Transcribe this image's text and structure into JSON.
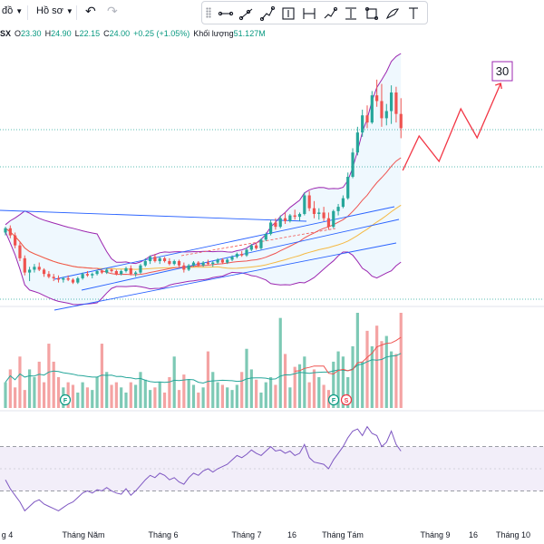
{
  "toolbar": {
    "chart_type_label": "đồ",
    "template_label": "Hồ sơ",
    "undo_icon": "undo-icon",
    "redo_icon": "redo-icon"
  },
  "drawing_tools": [
    {
      "name": "trend-line-icon"
    },
    {
      "name": "ray-icon"
    },
    {
      "name": "path-icon"
    },
    {
      "name": "date-price-range-icon"
    },
    {
      "name": "date-range-icon"
    },
    {
      "name": "forecast-icon"
    },
    {
      "name": "price-range-icon"
    },
    {
      "name": "rectangle-icon"
    },
    {
      "name": "brush-icon"
    },
    {
      "name": "text-icon"
    }
  ],
  "legend": {
    "symbol": "SX",
    "open_label": "O",
    "open": "23.30",
    "high_label": "H",
    "high": "24.90",
    "low_label": "L",
    "low": "22.15",
    "close_label": "C",
    "close": "24.00",
    "change": "+0.25 (+1.05%)",
    "volume_label": "Khối lượng",
    "volume": "51.127M"
  },
  "annotation": {
    "target_label": "30"
  },
  "event_markers": [
    {
      "label": "F",
      "color": "#089981"
    },
    {
      "label": "F",
      "color": "#089981"
    },
    {
      "label": "S",
      "color": "#f23645"
    }
  ],
  "colors": {
    "up": "#26a69a",
    "down": "#ef5350",
    "vol_up": "#7dc9b5",
    "vol_down": "#f4a3a3",
    "bb_band": "#9c27b0",
    "bb_mid": "#ef5350",
    "ma": "#f5b942",
    "channel": "#2962ff",
    "forecast": "#f23645",
    "rsi": "#7e57c2"
  },
  "x_axis_labels": [
    "g 4",
    "Tháng Năm",
    "Tháng 6",
    "Tháng 7",
    "16",
    "Tháng Tám",
    "Tháng 9",
    "16",
    "Tháng 10"
  ],
  "chart_data": {
    "type": "candlestick",
    "rsi_band": [
      30,
      70
    ],
    "candles": [
      [
        14.6,
        15.0,
        14.4,
        14.9
      ],
      [
        14.9,
        15.1,
        14.2,
        14.4
      ],
      [
        14.4,
        14.6,
        13.5,
        13.7
      ],
      [
        13.7,
        13.9,
        12.6,
        12.8
      ],
      [
        12.8,
        13.0,
        11.6,
        11.8
      ],
      [
        11.8,
        12.2,
        11.2,
        12.0
      ],
      [
        12.0,
        12.4,
        11.8,
        12.2
      ],
      [
        12.2,
        12.5,
        11.9,
        12.0
      ],
      [
        12.0,
        12.1,
        11.5,
        11.7
      ],
      [
        11.7,
        11.9,
        11.4,
        11.5
      ],
      [
        11.5,
        11.7,
        11.2,
        11.4
      ],
      [
        11.4,
        11.6,
        11.1,
        11.3
      ],
      [
        11.3,
        11.5,
        11.1,
        11.4
      ],
      [
        11.4,
        11.6,
        11.2,
        11.3
      ],
      [
        11.3,
        11.4,
        11.0,
        11.1
      ],
      [
        11.1,
        11.5,
        11.0,
        11.4
      ],
      [
        11.4,
        11.8,
        11.3,
        11.7
      ],
      [
        11.7,
        11.9,
        11.5,
        11.6
      ],
      [
        11.6,
        11.8,
        11.4,
        11.7
      ],
      [
        11.7,
        12.0,
        11.6,
        11.9
      ],
      [
        11.9,
        12.0,
        11.7,
        11.8
      ],
      [
        11.8,
        12.1,
        11.7,
        12.0
      ],
      [
        12.0,
        12.1,
        11.8,
        11.9
      ],
      [
        11.9,
        12.0,
        11.6,
        11.7
      ],
      [
        11.7,
        12.0,
        11.6,
        11.9
      ],
      [
        11.9,
        12.2,
        11.8,
        12.1
      ],
      [
        12.1,
        12.3,
        11.6,
        11.7
      ],
      [
        11.7,
        11.9,
        11.5,
        11.8
      ],
      [
        11.8,
        12.4,
        11.7,
        12.3
      ],
      [
        12.3,
        12.8,
        12.2,
        12.6
      ],
      [
        12.6,
        13.0,
        12.4,
        12.9
      ],
      [
        12.9,
        13.1,
        12.5,
        12.6
      ],
      [
        12.6,
        12.9,
        12.4,
        12.8
      ],
      [
        12.8,
        12.9,
        12.5,
        12.6
      ],
      [
        12.6,
        12.8,
        12.3,
        12.4
      ],
      [
        12.4,
        12.7,
        12.3,
        12.6
      ],
      [
        12.6,
        12.7,
        12.2,
        12.3
      ],
      [
        12.3,
        12.5,
        11.8,
        12.0
      ],
      [
        12.0,
        12.4,
        11.9,
        12.3
      ],
      [
        12.3,
        12.6,
        12.2,
        12.5
      ],
      [
        12.5,
        12.6,
        12.2,
        12.3
      ],
      [
        12.3,
        12.6,
        12.2,
        12.5
      ],
      [
        12.5,
        12.7,
        12.3,
        12.4
      ],
      [
        12.4,
        12.6,
        12.2,
        12.5
      ],
      [
        12.5,
        12.8,
        12.4,
        12.7
      ],
      [
        12.7,
        12.8,
        12.4,
        12.5
      ],
      [
        12.5,
        12.8,
        12.4,
        12.7
      ],
      [
        12.7,
        13.0,
        12.6,
        12.9
      ],
      [
        12.9,
        13.2,
        12.8,
        13.1
      ],
      [
        13.1,
        13.3,
        12.9,
        13.0
      ],
      [
        13.0,
        13.5,
        12.9,
        13.4
      ],
      [
        13.4,
        13.8,
        13.3,
        13.7
      ],
      [
        13.7,
        13.9,
        13.4,
        13.5
      ],
      [
        13.5,
        14.2,
        13.4,
        14.1
      ],
      [
        14.1,
        14.6,
        14.0,
        14.5
      ],
      [
        14.5,
        15.5,
        14.4,
        15.3
      ],
      [
        15.3,
        15.6,
        14.8,
        15.0
      ],
      [
        15.0,
        15.8,
        14.9,
        15.6
      ],
      [
        15.6,
        16.0,
        15.2,
        15.4
      ],
      [
        15.4,
        15.9,
        15.3,
        15.8
      ],
      [
        15.8,
        16.2,
        15.5,
        15.7
      ],
      [
        15.7,
        16.0,
        15.4,
        15.9
      ],
      [
        15.9,
        17.4,
        15.8,
        17.2
      ],
      [
        17.2,
        17.5,
        16.1,
        16.3
      ],
      [
        16.3,
        16.8,
        15.6,
        15.9
      ],
      [
        15.9,
        16.3,
        15.5,
        16.0
      ],
      [
        16.0,
        16.4,
        15.4,
        15.6
      ],
      [
        15.6,
        16.0,
        14.8,
        15.0
      ],
      [
        15.0,
        16.2,
        14.9,
        16.1
      ],
      [
        16.1,
        16.6,
        15.8,
        16.4
      ],
      [
        16.4,
        17.2,
        16.3,
        17.0
      ],
      [
        17.0,
        18.8,
        16.9,
        18.5
      ],
      [
        18.5,
        20.5,
        18.4,
        20.2
      ],
      [
        20.2,
        22.0,
        20.0,
        21.6
      ],
      [
        21.6,
        23.2,
        21.3,
        22.8
      ],
      [
        22.8,
        23.5,
        21.9,
        22.3
      ],
      [
        22.3,
        24.5,
        22.2,
        24.2
      ],
      [
        24.2,
        25.3,
        23.4,
        23.8
      ],
      [
        23.8,
        25.0,
        22.0,
        22.6
      ],
      [
        22.6,
        23.6,
        22.1,
        23.1
      ],
      [
        23.1,
        24.9,
        22.2,
        24.4
      ],
      [
        24.4,
        24.8,
        22.3,
        22.9
      ],
      [
        22.9,
        24.0,
        21.2,
        21.9
      ]
    ],
    "volume": [
      10,
      15,
      8,
      20,
      7,
      15,
      12,
      18,
      10,
      25,
      18,
      12,
      8,
      10,
      9,
      6,
      10,
      8,
      7,
      12,
      25,
      14,
      9,
      10,
      8,
      6,
      10,
      9,
      14,
      11,
      7,
      8,
      10,
      6,
      12,
      20,
      7,
      13,
      11,
      9,
      6,
      8,
      22,
      14,
      10,
      9,
      8,
      7,
      9,
      14,
      23,
      15,
      11,
      6,
      10,
      12,
      9,
      35,
      21,
      8,
      16,
      17,
      20,
      10,
      15,
      12,
      9,
      7,
      18,
      22,
      20,
      12,
      24,
      37,
      18,
      30,
      24,
      32,
      26,
      28,
      22,
      21,
      37
    ],
    "rsi": [
      40,
      32,
      26,
      20,
      12,
      16,
      20,
      22,
      18,
      16,
      14,
      12,
      15,
      18,
      20,
      24,
      28,
      30,
      28,
      31,
      30,
      33,
      30,
      28,
      27,
      32,
      26,
      30,
      35,
      40,
      44,
      42,
      46,
      44,
      40,
      42,
      38,
      36,
      42,
      46,
      44,
      48,
      50,
      47,
      50,
      52,
      54,
      58,
      62,
      60,
      63,
      67,
      64,
      62,
      66,
      70,
      66,
      67,
      64,
      66,
      62,
      64,
      72,
      60,
      56,
      55,
      54,
      50,
      58,
      64,
      70,
      78,
      84,
      86,
      80,
      88,
      82,
      80,
      70,
      74,
      84,
      72,
      66
    ]
  }
}
